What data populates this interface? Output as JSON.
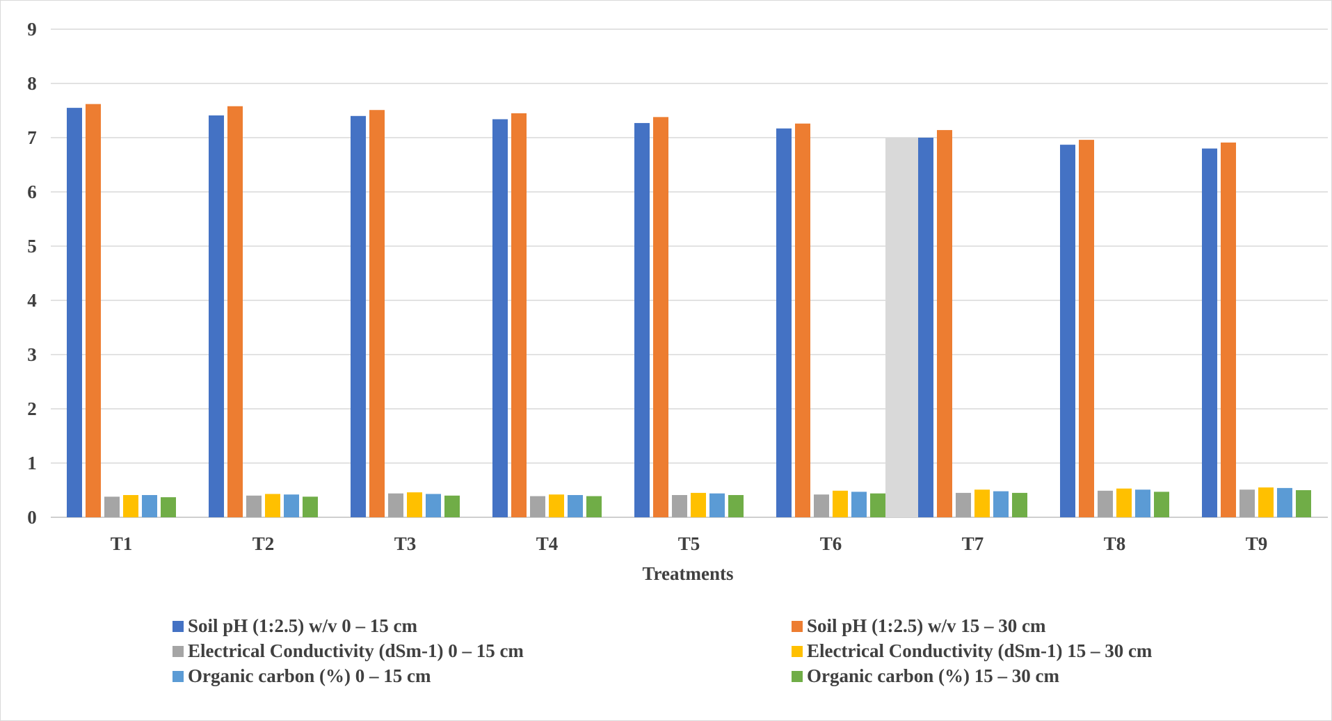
{
  "chart_data": {
    "type": "bar",
    "title": "",
    "xlabel": "Treatments",
    "ylabel": "",
    "ylim": [
      0,
      9
    ],
    "yticks": [
      0,
      1,
      2,
      3,
      4,
      5,
      6,
      7,
      8,
      9
    ],
    "grid": true,
    "legend_position": "bottom",
    "categories": [
      "T1",
      "T2",
      "T3",
      "T4",
      "T5",
      "T6",
      "T7",
      "T8",
      "T9"
    ],
    "series": [
      {
        "name": "Soil pH (1:2.5) w/v 0 – 15 cm",
        "color": "#4472C4",
        "values": [
          7.55,
          7.41,
          7.4,
          7.34,
          7.27,
          7.17,
          7.0,
          6.87,
          6.8
        ]
      },
      {
        "name": "Soil pH (1:2.5) w/v 15 – 30 cm",
        "color": "#ED7D31",
        "values": [
          7.62,
          7.58,
          7.51,
          7.45,
          7.38,
          7.26,
          7.14,
          6.96,
          6.91
        ]
      },
      {
        "name": "Electrical Conductivity (dSm-1) 0 – 15 cm",
        "color": "#A5A5A5",
        "values": [
          0.38,
          0.4,
          0.44,
          0.39,
          0.41,
          0.42,
          0.45,
          0.49,
          0.51
        ]
      },
      {
        "name": "Electrical Conductivity (dSm-1) 15 – 30 cm",
        "color": "#FFC000",
        "values": [
          0.41,
          0.43,
          0.46,
          0.42,
          0.45,
          0.49,
          0.51,
          0.53,
          0.55
        ]
      },
      {
        "name": "Organic carbon (%) 0 – 15 cm",
        "color": "#5B9BD5",
        "values": [
          0.41,
          0.42,
          0.43,
          0.41,
          0.44,
          0.47,
          0.48,
          0.51,
          0.54
        ]
      },
      {
        "name": "Organic carbon (%) 15 – 30 cm",
        "color": "#70AD47",
        "values": [
          0.37,
          0.38,
          0.4,
          0.39,
          0.41,
          0.44,
          0.45,
          0.47,
          0.5
        ]
      }
    ],
    "highlight": {
      "region_between": [
        "T6",
        "T7"
      ],
      "upper_value": 7.0,
      "color": "#D9D9D9"
    }
  }
}
